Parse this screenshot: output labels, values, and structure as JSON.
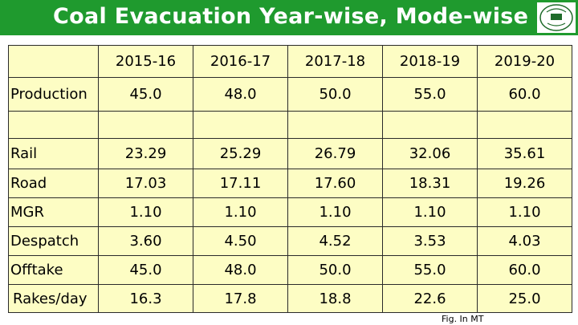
{
  "header": {
    "title": "Coal Evacuation Year-wise, Mode-wise",
    "bar_color": "#1f9a2e",
    "logo_icon": "coal-company-emblem"
  },
  "table": {
    "background": "#fdfdc4",
    "years": [
      "2015-16",
      "2016-17",
      "2017-18",
      "2018-19",
      "2019-20"
    ],
    "production": {
      "label": "Production",
      "values": [
        "45.0",
        "48.0",
        "50.0",
        "55.0",
        "60.0"
      ]
    },
    "rows": [
      {
        "label": "Rail",
        "values": [
          "23.29",
          "25.29",
          "26.79",
          "32.06",
          "35.61"
        ]
      },
      {
        "label": "Road",
        "values": [
          "17.03",
          "17.11",
          "17.60",
          "18.31",
          "19.26"
        ]
      },
      {
        "label": "MGR",
        "values": [
          "1.10",
          "1.10",
          "1.10",
          "1.10",
          "1.10"
        ]
      },
      {
        "label": "Despatch",
        "values": [
          "3.60",
          "4.50",
          "4.52",
          "3.53",
          "4.03"
        ]
      },
      {
        "label": "Offtake",
        "values": [
          "45.0",
          "48.0",
          "50.0",
          "55.0",
          "60.0"
        ]
      },
      {
        "label": "Rakes/day",
        "values": [
          "16.3",
          "17.8",
          "18.8",
          "22.6",
          "25.0"
        ]
      }
    ]
  },
  "footnote": "Fig. In MT"
}
